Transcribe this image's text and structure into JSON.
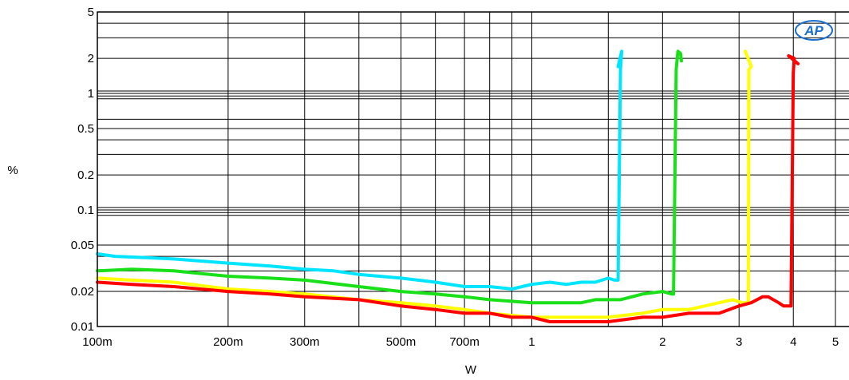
{
  "chart_data": {
    "type": "line",
    "title": "",
    "xlabel": "W",
    "ylabel": "%",
    "x_scale": "log",
    "y_scale": "log",
    "xlim": [
      0.1,
      5
    ],
    "ylim": [
      0.01,
      5
    ],
    "grid": true,
    "x_ticks": [
      {
        "value": 0.1,
        "label": "100m"
      },
      {
        "value": 0.2,
        "label": "200m"
      },
      {
        "value": 0.3,
        "label": "300m"
      },
      {
        "value": 0.5,
        "label": "500m"
      },
      {
        "value": 0.7,
        "label": "700m"
      },
      {
        "value": 1,
        "label": "1"
      },
      {
        "value": 2,
        "label": "2"
      },
      {
        "value": 3,
        "label": "3"
      },
      {
        "value": 4,
        "label": "4"
      },
      {
        "value": 5,
        "label": "5"
      }
    ],
    "y_ticks": [
      {
        "value": 0.01,
        "label": "0.01"
      },
      {
        "value": 0.02,
        "label": "0.02"
      },
      {
        "value": 0.05,
        "label": "0.05"
      },
      {
        "value": 0.1,
        "label": "0.1"
      },
      {
        "value": 0.2,
        "label": "0.2"
      },
      {
        "value": 0.5,
        "label": "0.5"
      },
      {
        "value": 1,
        "label": "1"
      },
      {
        "value": 2,
        "label": "2"
      },
      {
        "value": 5,
        "label": "5"
      }
    ],
    "logo": {
      "text": "AP",
      "color": "#1a6fd0"
    },
    "series": [
      {
        "color": "#00e5ff",
        "points": [
          [
            0.1,
            0.042
          ],
          [
            0.11,
            0.04
          ],
          [
            0.13,
            0.039
          ],
          [
            0.15,
            0.038
          ],
          [
            0.2,
            0.035
          ],
          [
            0.25,
            0.033
          ],
          [
            0.3,
            0.031
          ],
          [
            0.35,
            0.03
          ],
          [
            0.4,
            0.028
          ],
          [
            0.5,
            0.026
          ],
          [
            0.6,
            0.024
          ],
          [
            0.7,
            0.022
          ],
          [
            0.8,
            0.022
          ],
          [
            0.9,
            0.021
          ],
          [
            1.0,
            0.023
          ],
          [
            1.1,
            0.024
          ],
          [
            1.2,
            0.023
          ],
          [
            1.3,
            0.024
          ],
          [
            1.4,
            0.024
          ],
          [
            1.5,
            0.026
          ],
          [
            1.55,
            0.025
          ],
          [
            1.58,
            0.025
          ],
          [
            1.6,
            1.6
          ],
          [
            1.61,
            2.3
          ],
          [
            1.58,
            1.7
          ]
        ]
      },
      {
        "color": "#19e019",
        "points": [
          [
            0.1,
            0.03
          ],
          [
            0.12,
            0.031
          ],
          [
            0.15,
            0.03
          ],
          [
            0.2,
            0.027
          ],
          [
            0.25,
            0.026
          ],
          [
            0.3,
            0.025
          ],
          [
            0.4,
            0.022
          ],
          [
            0.5,
            0.02
          ],
          [
            0.6,
            0.019
          ],
          [
            0.7,
            0.018
          ],
          [
            0.8,
            0.017
          ],
          [
            1.0,
            0.016
          ],
          [
            1.2,
            0.016
          ],
          [
            1.3,
            0.016
          ],
          [
            1.4,
            0.017
          ],
          [
            1.6,
            0.017
          ],
          [
            1.8,
            0.019
          ],
          [
            2.0,
            0.02
          ],
          [
            2.1,
            0.019
          ],
          [
            2.12,
            0.019
          ],
          [
            2.15,
            1.6
          ],
          [
            2.17,
            2.3
          ],
          [
            2.2,
            2.2
          ],
          [
            2.21,
            1.9
          ]
        ]
      },
      {
        "color": "#ffff00",
        "points": [
          [
            0.1,
            0.026
          ],
          [
            0.12,
            0.025
          ],
          [
            0.15,
            0.024
          ],
          [
            0.2,
            0.021
          ],
          [
            0.25,
            0.02
          ],
          [
            0.3,
            0.019
          ],
          [
            0.4,
            0.017
          ],
          [
            0.5,
            0.016
          ],
          [
            0.6,
            0.015
          ],
          [
            0.7,
            0.014
          ],
          [
            0.8,
            0.013
          ],
          [
            1.0,
            0.012
          ],
          [
            1.2,
            0.012
          ],
          [
            1.5,
            0.012
          ],
          [
            1.8,
            0.013
          ],
          [
            2.0,
            0.014
          ],
          [
            2.3,
            0.014
          ],
          [
            2.5,
            0.015
          ],
          [
            2.7,
            0.016
          ],
          [
            2.9,
            0.017
          ],
          [
            3.05,
            0.016
          ],
          [
            3.15,
            0.016
          ],
          [
            3.16,
            1.6
          ],
          [
            3.2,
            1.7
          ],
          [
            3.1,
            2.3
          ]
        ]
      },
      {
        "color": "#ff0000",
        "points": [
          [
            0.1,
            0.024
          ],
          [
            0.12,
            0.023
          ],
          [
            0.15,
            0.022
          ],
          [
            0.2,
            0.02
          ],
          [
            0.25,
            0.019
          ],
          [
            0.3,
            0.018
          ],
          [
            0.4,
            0.017
          ],
          [
            0.5,
            0.015
          ],
          [
            0.6,
            0.014
          ],
          [
            0.7,
            0.013
          ],
          [
            0.8,
            0.013
          ],
          [
            0.9,
            0.012
          ],
          [
            1.0,
            0.012
          ],
          [
            1.1,
            0.011
          ],
          [
            1.3,
            0.011
          ],
          [
            1.5,
            0.011
          ],
          [
            1.8,
            0.012
          ],
          [
            2.0,
            0.012
          ],
          [
            2.3,
            0.013
          ],
          [
            2.7,
            0.013
          ],
          [
            3.0,
            0.015
          ],
          [
            3.2,
            0.016
          ],
          [
            3.4,
            0.018
          ],
          [
            3.5,
            0.018
          ],
          [
            3.7,
            0.016
          ],
          [
            3.8,
            0.015
          ],
          [
            3.95,
            0.015
          ],
          [
            4.0,
            1.5
          ],
          [
            4.02,
            2.0
          ],
          [
            3.9,
            2.1
          ],
          [
            4.1,
            1.8
          ]
        ]
      }
    ]
  }
}
